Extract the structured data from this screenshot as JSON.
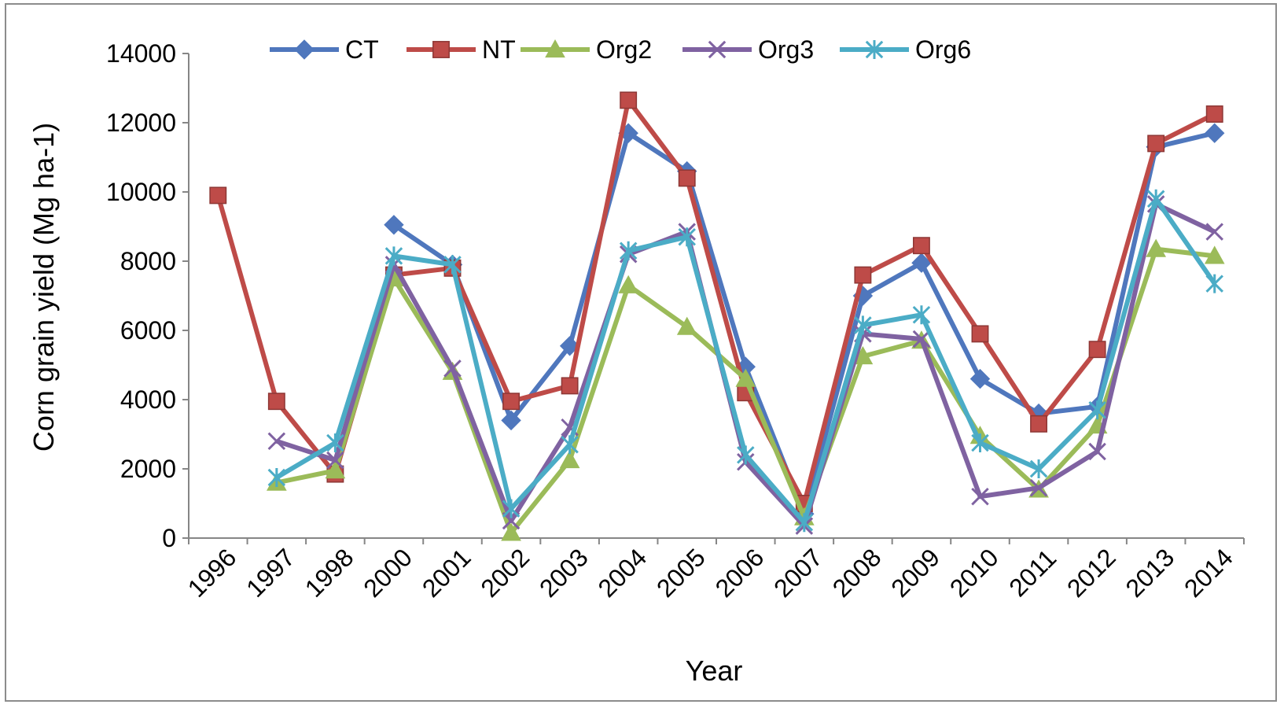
{
  "chart_data": {
    "type": "line",
    "title": "",
    "xlabel": "Year",
    "ylabel": "Corn grain yield (Mg ha-1)",
    "ylim": [
      0,
      14000
    ],
    "yticks": [
      0,
      2000,
      4000,
      6000,
      8000,
      10000,
      12000,
      14000
    ],
    "categories": [
      "1996",
      "1997",
      "1998",
      "2000",
      "2001",
      "2002",
      "2003",
      "2004",
      "2005",
      "2006",
      "2007",
      "2008",
      "2009",
      "2010",
      "2011",
      "2012",
      "2013",
      "2014"
    ],
    "legend_position": "top",
    "grid": false,
    "series": [
      {
        "name": "CT",
        "color": "#4f77bd",
        "marker": "diamond",
        "values": [
          null,
          null,
          null,
          9050,
          7900,
          3400,
          5550,
          11700,
          10600,
          4950,
          700,
          7000,
          7950,
          4600,
          3600,
          3800,
          11300,
          11700
        ]
      },
      {
        "name": "NT",
        "color": "#be4b48",
        "marker": "square",
        "values": [
          9900,
          3950,
          1850,
          7600,
          7800,
          3950,
          4400,
          12650,
          10400,
          4200,
          1000,
          7600,
          8450,
          5900,
          3300,
          5450,
          11400,
          12250
        ]
      },
      {
        "name": "Org2",
        "color": "#9bbb59",
        "marker": "triangle",
        "values": [
          null,
          1600,
          1950,
          7500,
          4800,
          150,
          2250,
          7300,
          6100,
          4600,
          600,
          5250,
          5700,
          2950,
          1400,
          3250,
          8350,
          8150
        ]
      },
      {
        "name": "Org3",
        "color": "#7f62a1",
        "marker": "x",
        "values": [
          null,
          2800,
          2250,
          7900,
          4900,
          500,
          3200,
          8200,
          8850,
          2200,
          350,
          5900,
          5750,
          1200,
          1450,
          2500,
          9650,
          8850
        ]
      },
      {
        "name": "Org6",
        "color": "#4bacc6",
        "marker": "asterisk",
        "values": [
          null,
          1750,
          2750,
          8150,
          7900,
          850,
          2700,
          8300,
          8700,
          2400,
          450,
          6150,
          6450,
          2750,
          2000,
          3700,
          9800,
          7350
        ]
      }
    ]
  }
}
